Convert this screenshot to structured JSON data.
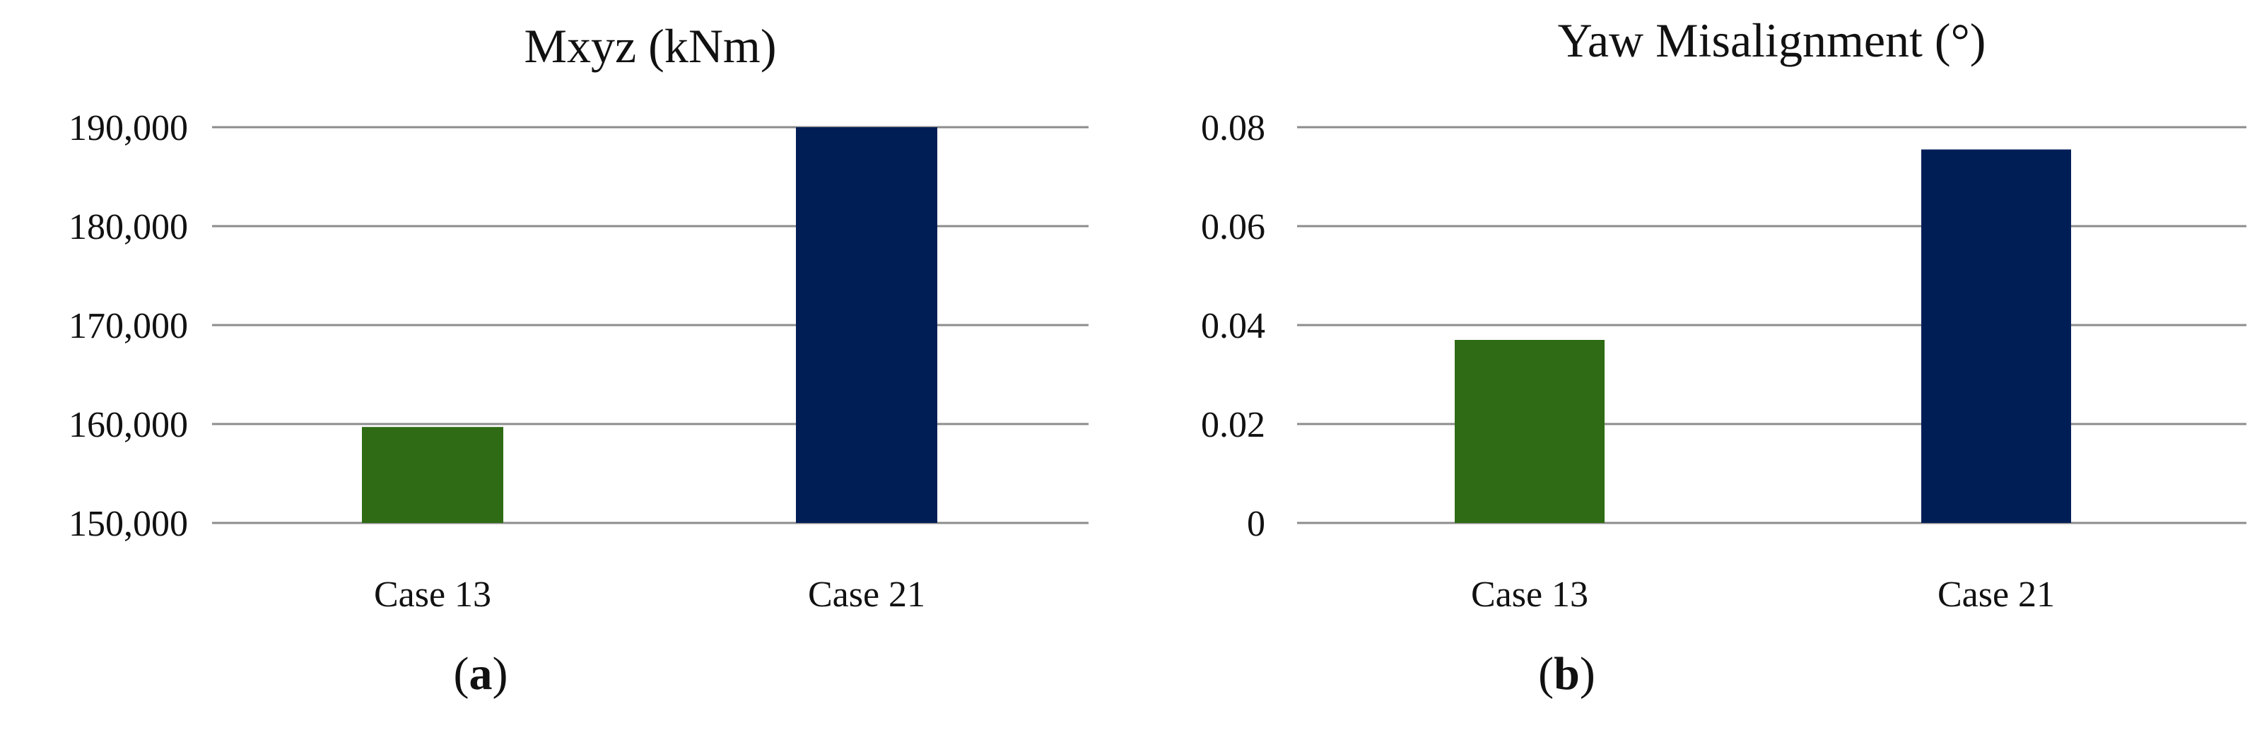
{
  "chart_data": [
    {
      "type": "bar",
      "title": "Mxyz (kNm)",
      "categories": [
        "Case 13",
        "Case 21"
      ],
      "values": [
        159700,
        190000
      ],
      "colors": [
        "#2e6b14",
        "#001e56"
      ],
      "ylim": [
        150000,
        190000
      ],
      "yticks": [
        150000,
        160000,
        170000,
        180000,
        190000
      ],
      "ytick_labels": [
        "150,000",
        "160,000",
        "170,000",
        "180,000",
        "190,000"
      ],
      "grid": true,
      "xlabel": "",
      "ylabel": "",
      "panel_label": {
        "open": "(",
        "letter": "a",
        "close": ")"
      }
    },
    {
      "type": "bar",
      "title": "Yaw Misalignment (°)",
      "categories": [
        "Case 13",
        "Case 21"
      ],
      "values": [
        0.037,
        0.0755
      ],
      "colors": [
        "#2e6b14",
        "#001e56"
      ],
      "ylim": [
        0,
        0.08
      ],
      "yticks": [
        0,
        0.02,
        0.04,
        0.06,
        0.08
      ],
      "ytick_labels": [
        "0",
        "0.02",
        "0.04",
        "0.06",
        "0.08"
      ],
      "grid": true,
      "xlabel": "",
      "ylabel": "",
      "panel_label": {
        "open": "(",
        "letter": "b",
        "close": ")"
      }
    }
  ]
}
